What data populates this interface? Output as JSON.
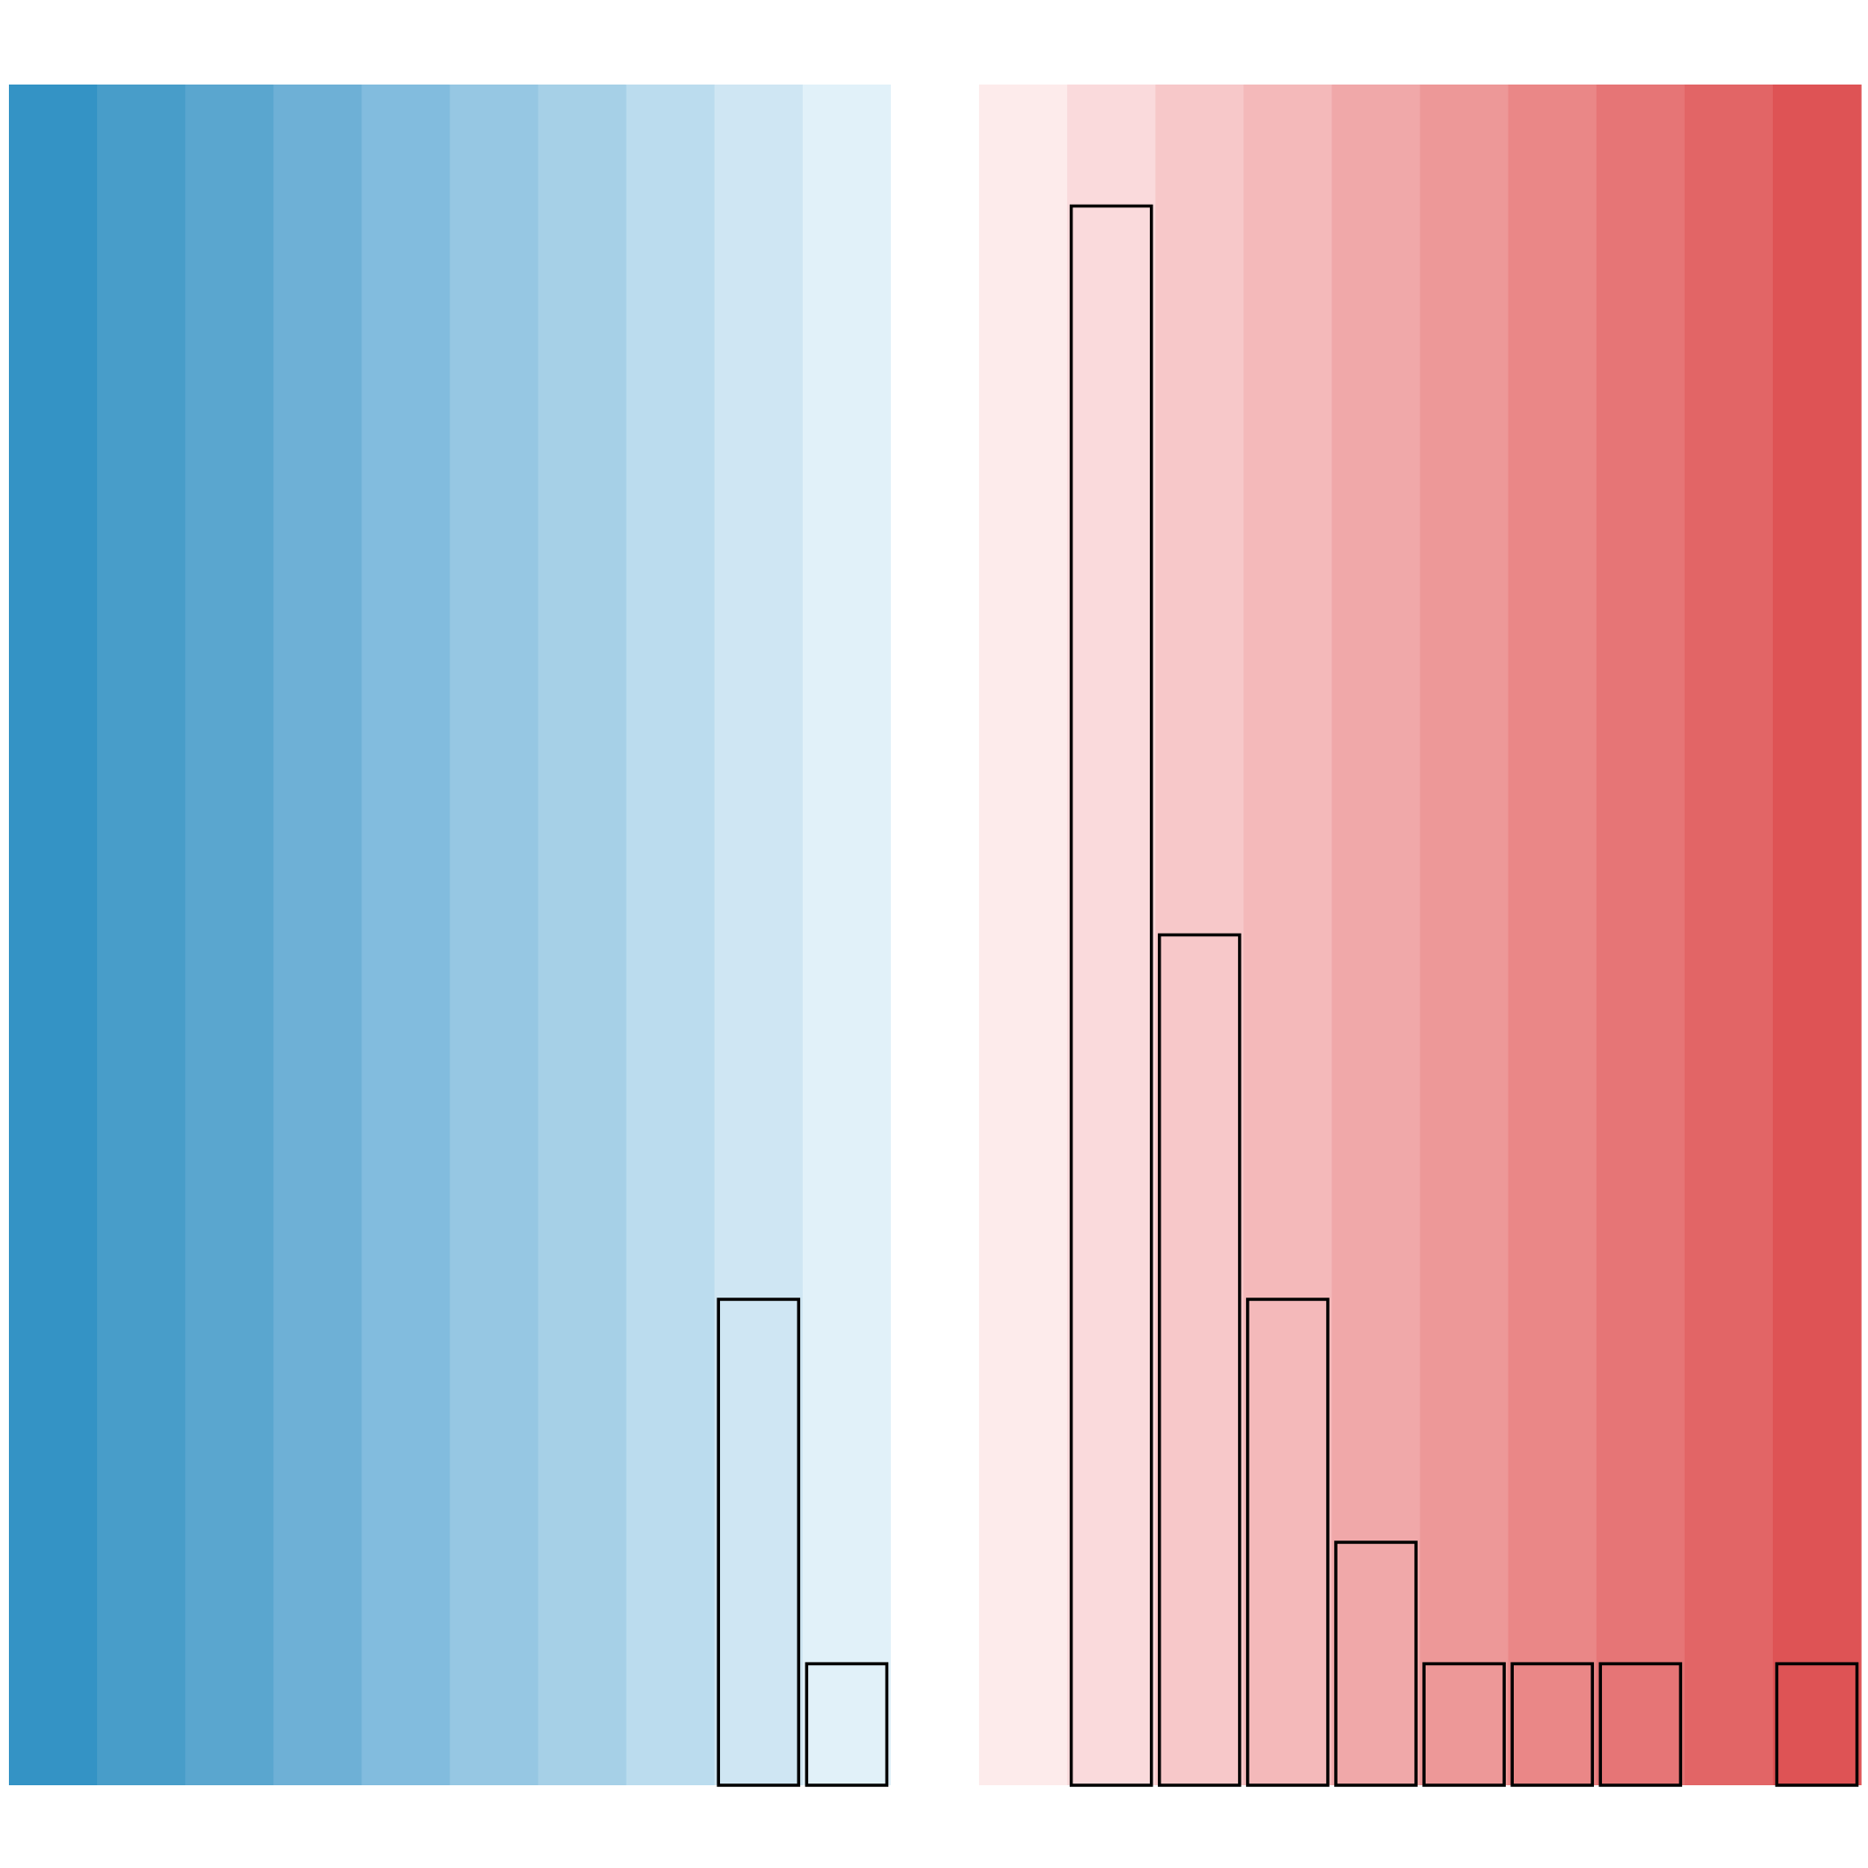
{
  "chart_data": {
    "type": "bar",
    "grid": false,
    "legend": "none",
    "title": "",
    "xlabel": "",
    "ylabel": "",
    "ylim": [
      0,
      14
    ],
    "bins": [
      {
        "value": 0,
        "color": "#3493c5"
      },
      {
        "value": 0,
        "color": "#489dc9"
      },
      {
        "value": 0,
        "color": "#5aa6cf"
      },
      {
        "value": 0,
        "color": "#6eb0d6"
      },
      {
        "value": 0,
        "color": "#82bcde"
      },
      {
        "value": 0,
        "color": "#96c7e3"
      },
      {
        "value": 0,
        "color": "#a6d0e7"
      },
      {
        "value": 0,
        "color": "#bbdcee"
      },
      {
        "value": 4,
        "color": "#cfe6f3"
      },
      {
        "value": 1,
        "color": "#e1f1f9"
      },
      {
        "value": null,
        "color": "#ffffff"
      },
      {
        "value": 0,
        "color": "#fdebeb"
      },
      {
        "value": 13,
        "color": "#fadadc"
      },
      {
        "value": 7,
        "color": "#f7c8c9"
      },
      {
        "value": 4,
        "color": "#f4b9ba"
      },
      {
        "value": 2,
        "color": "#f0a8a9"
      },
      {
        "value": 1,
        "color": "#ed9898"
      },
      {
        "value": 1,
        "color": "#ea8787"
      },
      {
        "value": 1,
        "color": "#e67576"
      },
      {
        "value": 0,
        "color": "#e26566"
      },
      {
        "value": 1,
        "color": "#de5355"
      }
    ]
  }
}
